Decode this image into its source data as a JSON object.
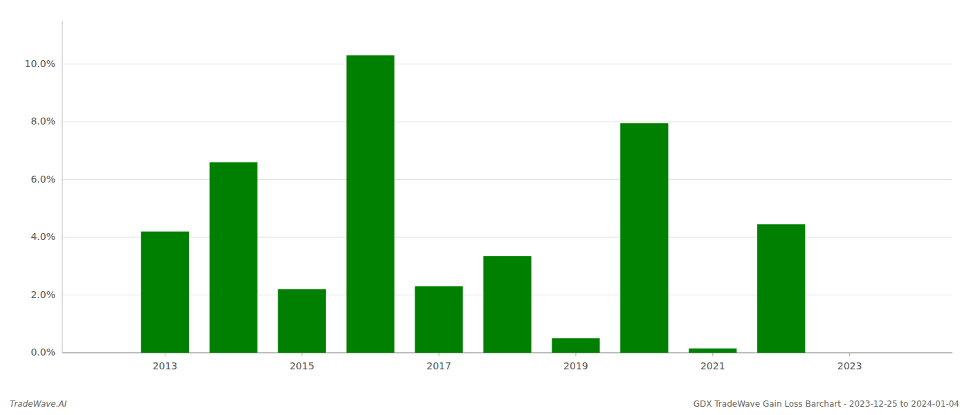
{
  "chart_data": {
    "type": "bar",
    "x": [
      2013,
      2014,
      2015,
      2016,
      2017,
      2018,
      2019,
      2020,
      2021,
      2022,
      2023
    ],
    "values": [
      0.042,
      0.066,
      0.022,
      0.103,
      0.023,
      0.0335,
      0.005,
      0.0795,
      0.0015,
      0.0445,
      0.0
    ],
    "color": "#008000",
    "xlim": [
      2011.5,
      2024.5
    ],
    "xticks": [
      2013,
      2015,
      2017,
      2019,
      2021,
      2023
    ],
    "ylim": [
      0,
      0.115
    ],
    "yticks": [
      {
        "value": 0.0,
        "label": "0.0%"
      },
      {
        "value": 0.02,
        "label": "2.0%"
      },
      {
        "value": 0.04,
        "label": "4.0%"
      },
      {
        "value": 0.06,
        "label": "6.0%"
      },
      {
        "value": 0.08,
        "label": "8.0%"
      },
      {
        "value": 0.1,
        "label": "10.0%"
      }
    ],
    "grid": true,
    "annotations": [
      "TradeWave.AI",
      "GDX TradeWave Gain Loss Barchart - 2023-12-25 to 2024-01-04"
    ]
  }
}
